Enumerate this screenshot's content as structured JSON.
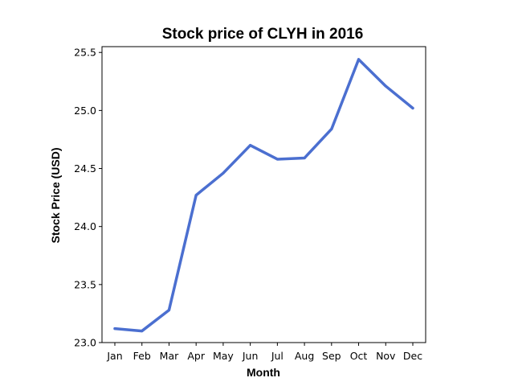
{
  "chart_data": {
    "type": "line",
    "title": "Stock price of CLYH in 2016",
    "xlabel": "Month",
    "ylabel": "Stock Price (USD)",
    "categories": [
      "Jan",
      "Feb",
      "Mar",
      "Apr",
      "May",
      "Jun",
      "Jul",
      "Aug",
      "Sep",
      "Oct",
      "Nov",
      "Dec"
    ],
    "values": [
      23.12,
      23.1,
      23.28,
      24.27,
      24.46,
      24.7,
      24.58,
      24.59,
      24.84,
      25.44,
      25.21,
      25.02
    ],
    "ylim": [
      23.0,
      25.55
    ],
    "yticks": [
      "23.0",
      "23.5",
      "24.0",
      "24.5",
      "25.0",
      "25.5"
    ],
    "grid": false,
    "line_color": "#4b6fd0"
  }
}
